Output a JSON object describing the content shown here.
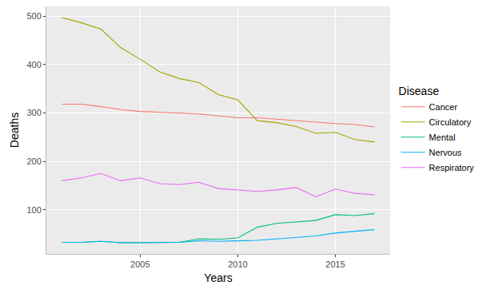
{
  "chart_data": {
    "type": "line",
    "x_label": "Years",
    "y_label": "Deaths",
    "legend_title": "Disease",
    "legend": "right",
    "grid": true,
    "x": [
      2001,
      2002,
      2003,
      2004,
      2005,
      2006,
      2007,
      2008,
      2009,
      2010,
      2011,
      2012,
      2013,
      2014,
      2015,
      2016,
      2017
    ],
    "xlim": [
      2000.2,
      2017.8
    ],
    "xticks": [
      2005,
      2010,
      2015
    ],
    "ylim": [
      9,
      520
    ],
    "yticks": [
      100,
      200,
      300,
      400,
      500
    ],
    "series": [
      {
        "name": "Cancer",
        "color": "#F8766D",
        "values": [
          318,
          318,
          313,
          307,
          303,
          302,
          300,
          298,
          294,
          290,
          290,
          287,
          283,
          280,
          278,
          276,
          271
        ]
      },
      {
        "name": "Circulatory",
        "color": "#A3A500",
        "values": [
          497,
          486,
          473,
          435,
          411,
          385,
          371,
          363,
          338,
          327,
          284,
          280,
          272,
          258,
          260,
          245,
          240
        ]
      },
      {
        "name": "Mental",
        "color": "#00BF7D",
        "values": [
          33,
          33,
          35,
          32,
          32,
          32,
          33,
          40,
          39,
          42,
          64,
          72,
          75,
          78,
          90,
          88,
          92
        ]
      },
      {
        "name": "Nervous",
        "color": "#00B0F6",
        "values": [
          33,
          33,
          35,
          32,
          32,
          33,
          33,
          36,
          35,
          36,
          37,
          40,
          43,
          46,
          52,
          55,
          59
        ]
      },
      {
        "name": "Respiratory",
        "color": "#E76BF3",
        "values": [
          160,
          166,
          175,
          160,
          166,
          154,
          152,
          157,
          144,
          141,
          138,
          141,
          146,
          127,
          143,
          134,
          131
        ]
      }
    ]
  }
}
